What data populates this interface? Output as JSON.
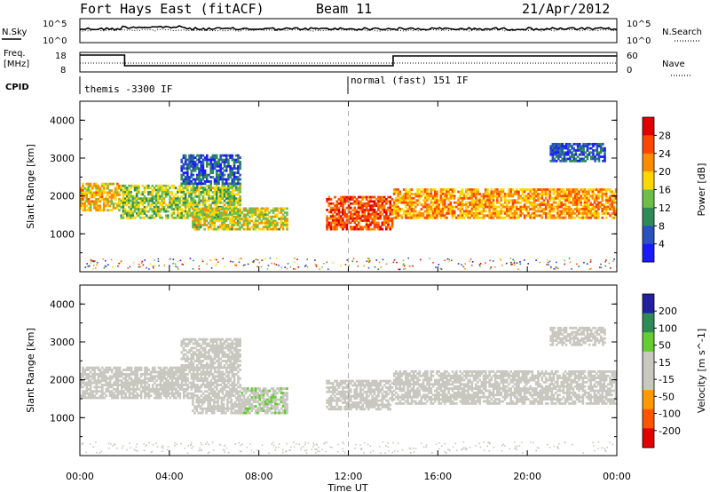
{
  "header": {
    "station": "Fort Hays East (fitACF)",
    "beam": "Beam 11",
    "date": "21/Apr/2012"
  },
  "noise_panel": {
    "label": "N.Sky",
    "right_label": "N.Search",
    "left_ticks": [
      "10^5",
      "10^0"
    ],
    "right_ticks": [
      "10^5",
      "10^0"
    ]
  },
  "freq_panel": {
    "label_line1": "Freq.",
    "label_line2": "[MHz]",
    "right_label": "Nave",
    "left_ticks": [
      "18",
      "8"
    ],
    "right_ticks": [
      "60",
      "0"
    ]
  },
  "cpid_panel": {
    "label": "CPID",
    "modes": [
      {
        "name": "themis -3300 IF",
        "start_hour": 0
      },
      {
        "name": "normal (fast) 151 IF",
        "start_hour": 12
      }
    ]
  },
  "x_axis": {
    "label": "Time UT",
    "ticks": [
      "00:00",
      "04:00",
      "08:00",
      "12:00",
      "16:00",
      "20:00",
      "00:00"
    ],
    "range_hours": [
      0,
      24
    ]
  },
  "colors": {
    "power_scale": [
      "#1a1aff",
      "#2a52be",
      "#2e8b57",
      "#6dbf4a",
      "#ffd700",
      "#ff8c00",
      "#ff4500",
      "#e00000"
    ],
    "velocity_scale": [
      "#2020a0",
      "#2e8b57",
      "#66cc33",
      "#c8c8c0",
      "#c8c8c0",
      "#ff9900",
      "#ff5500",
      "#e00000"
    ],
    "ground_scatter": "#c8c8c0"
  },
  "chart_data": [
    {
      "type": "heatmap",
      "name": "Power",
      "ylabel": "Slant Range [km]",
      "yticks": [
        "1000",
        "2000",
        "3000",
        "4000"
      ],
      "ylim": [
        0,
        4500
      ],
      "colorbar_label": "Power [dB]",
      "colorbar_ticks": [
        "4",
        "8",
        "12",
        "16",
        "20",
        "24",
        "28"
      ],
      "colorbar_range": [
        0,
        30
      ],
      "echo_regions": [
        {
          "t0": 0.0,
          "t1": 1.8,
          "r0": 1600,
          "r1": 2350,
          "value": 18
        },
        {
          "t0": 1.8,
          "t1": 7.2,
          "r0": 1400,
          "r1": 2300,
          "value": 14
        },
        {
          "t0": 5.0,
          "t1": 9.3,
          "r0": 1100,
          "r1": 1700,
          "value": 16
        },
        {
          "t0": 4.5,
          "t1": 7.2,
          "r0": 2300,
          "r1": 3100,
          "value": 6
        },
        {
          "t0": 11.0,
          "t1": 14.0,
          "r0": 1100,
          "r1": 2000,
          "value": 24
        },
        {
          "t0": 14.0,
          "t1": 24.0,
          "r0": 1400,
          "r1": 2200,
          "value": 20
        },
        {
          "t0": 21.0,
          "t1": 23.5,
          "r0": 2900,
          "r1": 3400,
          "value": 6
        }
      ]
    },
    {
      "type": "heatmap",
      "name": "Velocity",
      "ylabel": "Slant Range [km]",
      "yticks": [
        "1000",
        "2000",
        "3000",
        "4000"
      ],
      "ylim": [
        0,
        4500
      ],
      "colorbar_label": "Velocity [m s^-1]",
      "colorbar_ticks": [
        "200",
        "100",
        "50",
        "15",
        "-15",
        "-50",
        "-100",
        "-200"
      ],
      "colorbar_range": [
        -250,
        250
      ],
      "echo_regions": [
        {
          "t0": 0.0,
          "t1": 7.2,
          "r0": 1500,
          "r1": 2350,
          "value": 0
        },
        {
          "t0": 4.5,
          "t1": 7.2,
          "r0": 2300,
          "r1": 3100,
          "value": 0
        },
        {
          "t0": 5.0,
          "t1": 7.5,
          "r0": 1100,
          "r1": 1500,
          "value": 0
        },
        {
          "t0": 7.2,
          "t1": 9.3,
          "r0": 1100,
          "r1": 1800,
          "value": 60
        },
        {
          "t0": 11.0,
          "t1": 14.0,
          "r0": 1200,
          "r1": 2000,
          "value": 0
        },
        {
          "t0": 14.0,
          "t1": 24.0,
          "r0": 1350,
          "r1": 2250,
          "value": 0
        },
        {
          "t0": 21.0,
          "t1": 23.5,
          "r0": 2900,
          "r1": 3400,
          "value": 0
        }
      ]
    }
  ]
}
